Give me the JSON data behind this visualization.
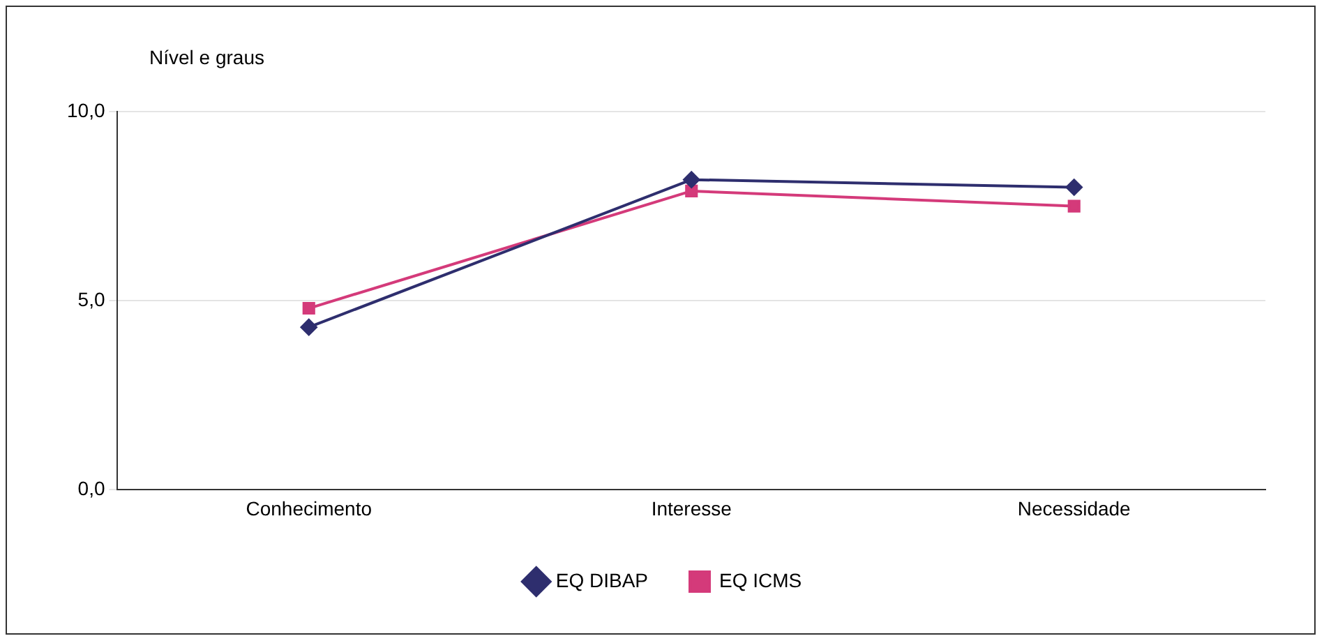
{
  "chart_data": {
    "type": "line",
    "ylabel": "Nível e graus",
    "categories": [
      "Conhecimento",
      "Interesse",
      "Necessidade"
    ],
    "series": [
      {
        "name": "EQ DIBAP",
        "color": "#2e2e6e",
        "values": [
          4.3,
          8.2,
          8.0
        ],
        "marker": "diamond"
      },
      {
        "name": "EQ ICMS",
        "color": "#d43a7a",
        "values": [
          4.8,
          7.9,
          7.5
        ],
        "marker": "square"
      }
    ],
    "ylim": [
      0,
      10
    ],
    "yticks": [
      {
        "value": 0,
        "label": "0,0"
      },
      {
        "value": 5,
        "label": "5,0"
      },
      {
        "value": 10,
        "label": "10,0"
      }
    ],
    "grid": "y",
    "legend": "bottom",
    "line_style": "solid"
  }
}
